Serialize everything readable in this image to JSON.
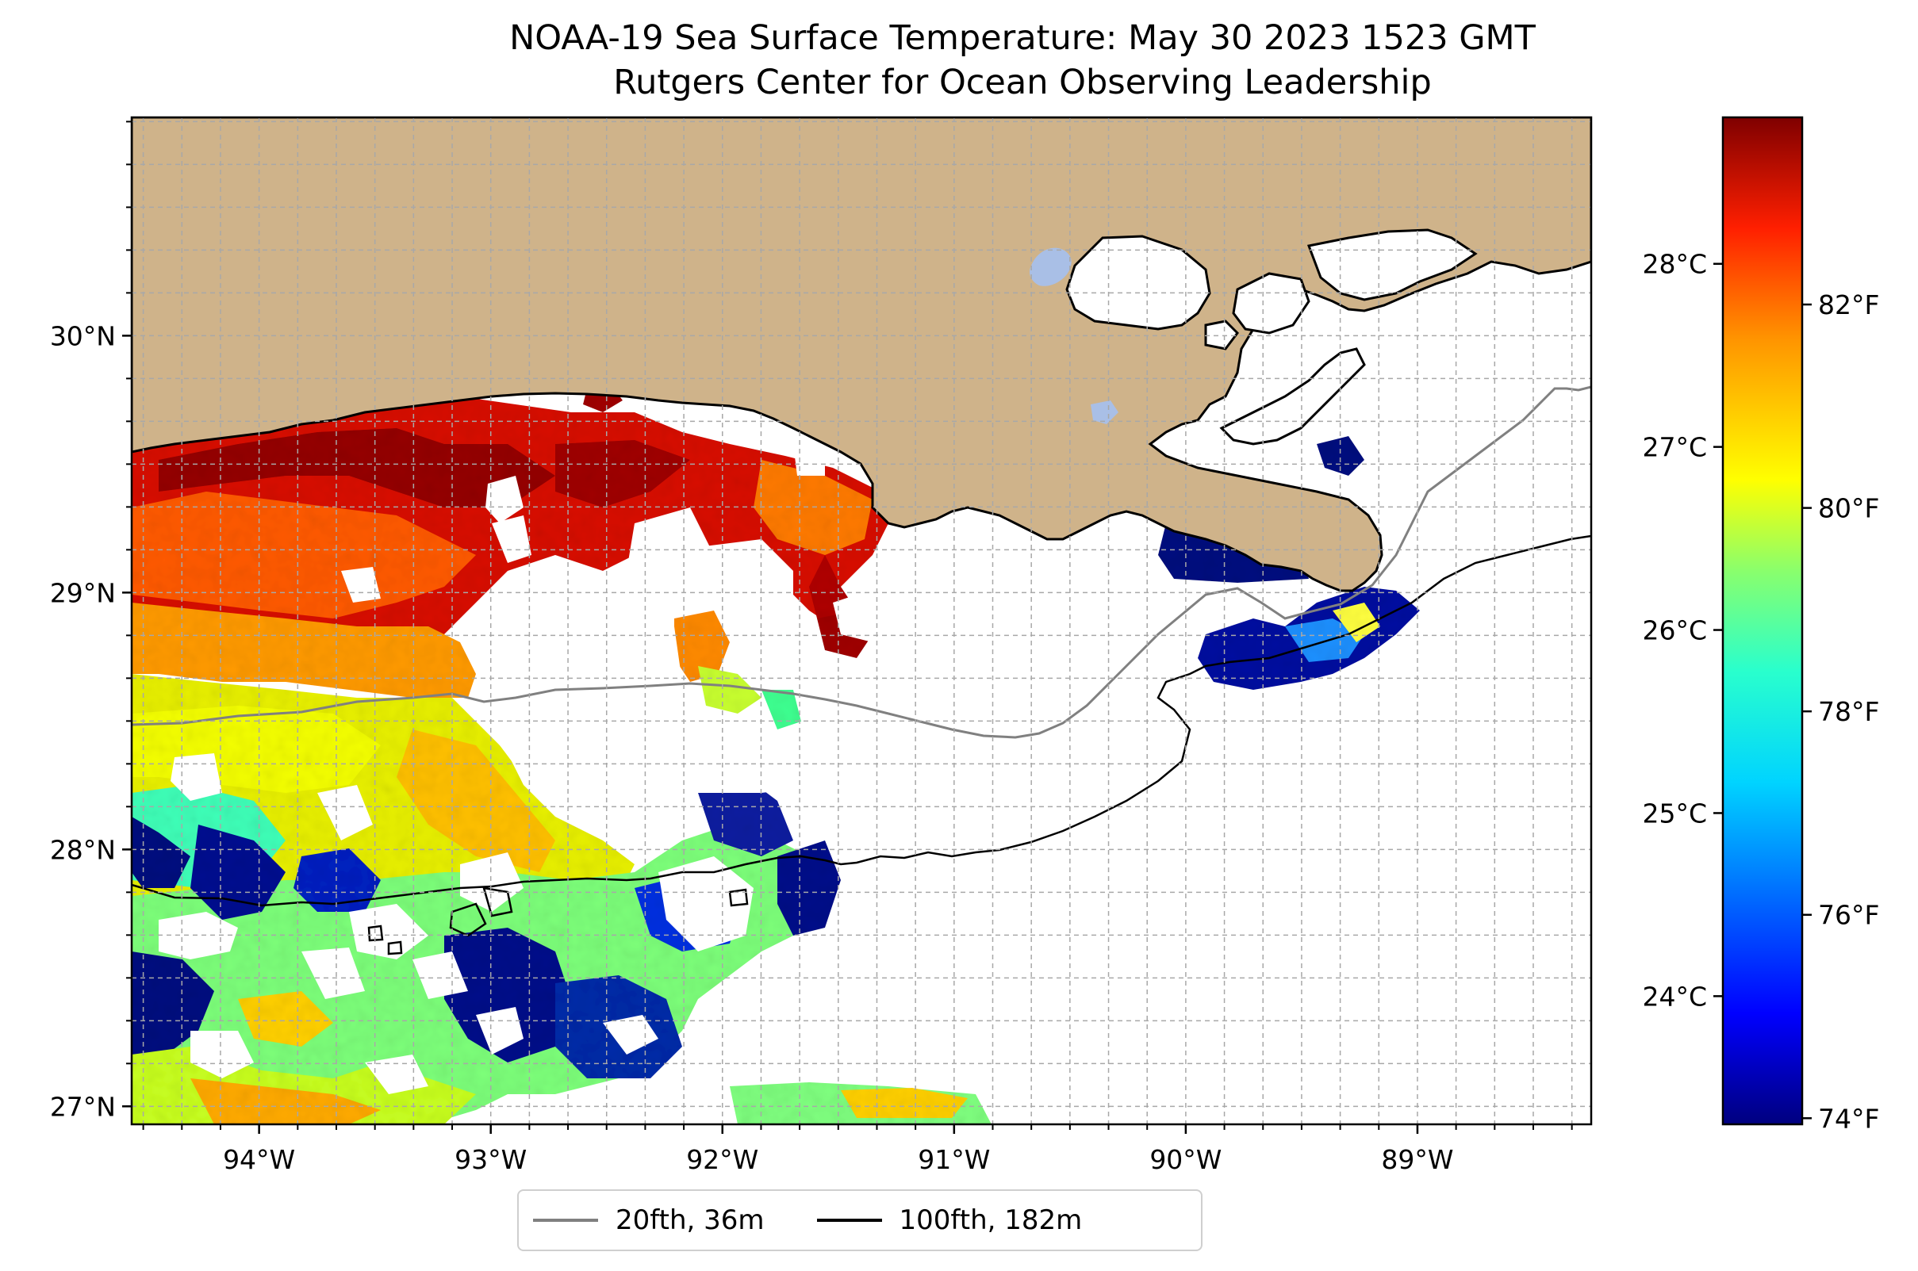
{
  "title_line1": "NOAA-19 Sea Surface Temperature: May 30 2023 1523 GMT",
  "title_line2": "Rutgers Center for Ocean Observing Leadership",
  "map": {
    "lon_range": [
      -94.55,
      -88.25
    ],
    "lat_range": [
      26.93,
      30.85
    ],
    "lon_ticks": [
      {
        "value": -94,
        "label": "94°W"
      },
      {
        "value": -93,
        "label": "93°W"
      },
      {
        "value": -92,
        "label": "92°W"
      },
      {
        "value": -91,
        "label": "91°W"
      },
      {
        "value": -90,
        "label": "90°W"
      },
      {
        "value": -89,
        "label": "89°W"
      }
    ],
    "lat_ticks": [
      {
        "value": 27,
        "label": "27°N"
      },
      {
        "value": 28,
        "label": "28°N"
      },
      {
        "value": 29,
        "label": "29°N"
      },
      {
        "value": 30,
        "label": "30°N"
      }
    ],
    "gridlines": true,
    "land_color": "#cfb38a",
    "water_color": "#ffffff"
  },
  "colorbar": {
    "colormap": "jet",
    "range_c": [
      23.3,
      28.8
    ],
    "celsius_ticks": [
      {
        "value": 24,
        "label": "24°C"
      },
      {
        "value": 25,
        "label": "25°C"
      },
      {
        "value": 26,
        "label": "26°C"
      },
      {
        "value": 27,
        "label": "27°C"
      },
      {
        "value": 28,
        "label": "28°C"
      }
    ],
    "fahrenheit_ticks": [
      {
        "value": 74,
        "label": "74°F"
      },
      {
        "value": 76,
        "label": "76°F"
      },
      {
        "value": 78,
        "label": "78°F"
      },
      {
        "value": 80,
        "label": "80°F"
      },
      {
        "value": 82,
        "label": "82°F"
      }
    ]
  },
  "legend": {
    "items": [
      {
        "label": "20fth, 36m",
        "color": "#808080"
      },
      {
        "label": "100fth, 182m",
        "color": "#000000"
      }
    ]
  }
}
